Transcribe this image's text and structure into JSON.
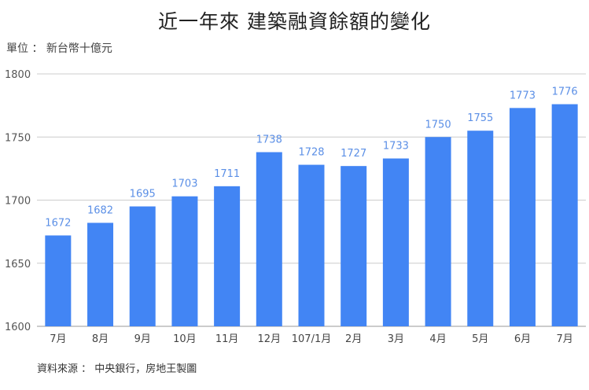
{
  "chart_data": {
    "type": "bar",
    "title": "近一年來 建築融資餘額的變化",
    "unit_label": "單位 ： 新台幣十億元",
    "source": "資料來源 ： 中央銀行，房地王製圖",
    "categories": [
      "7月",
      "8月",
      "9月",
      "10月",
      "11月",
      "12月",
      "107/1月",
      "2月",
      "3月",
      "4月",
      "5月",
      "6月",
      "7月"
    ],
    "values": [
      1672,
      1682,
      1695,
      1703,
      1711,
      1738,
      1728,
      1727,
      1733,
      1750,
      1755,
      1773,
      1776
    ],
    "ylim": [
      1600,
      1800
    ],
    "yticks": [
      1600,
      1650,
      1700,
      1750,
      1800
    ],
    "grid": true,
    "bar_color": "#4285f4",
    "label_color": "#5b8fe6",
    "gridline_color": "#cccccc"
  }
}
